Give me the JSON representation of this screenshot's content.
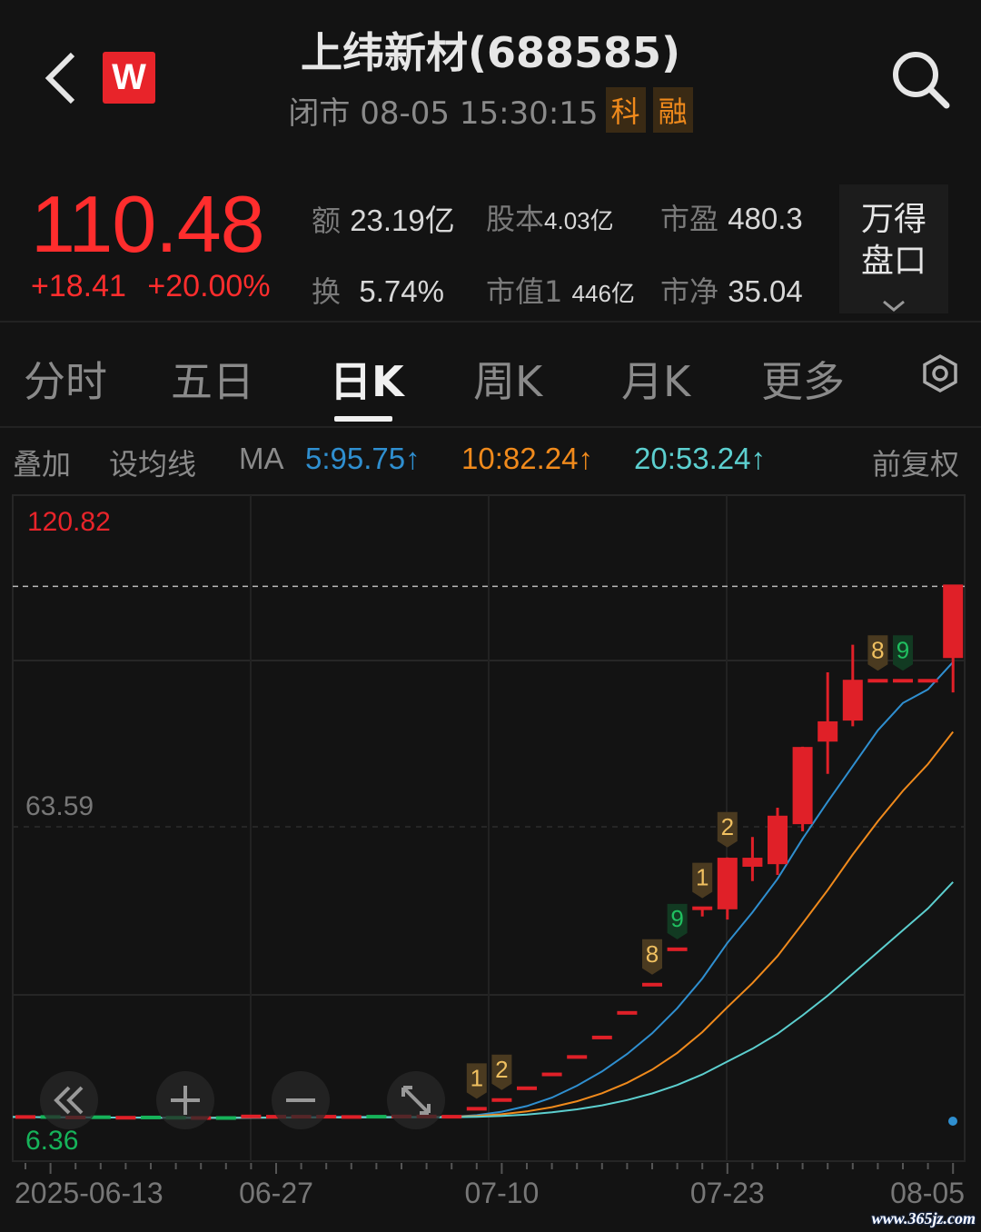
{
  "header": {
    "title": "上纬新材(688585)",
    "status": "闭市 08-05 15:30:15",
    "tags": [
      "科",
      "融"
    ],
    "logo_text": "W",
    "icons": [
      "back-chevron-icon",
      "wind-logo",
      "search-icon"
    ]
  },
  "quote": {
    "price": "110.48",
    "change": "+18.41",
    "change_pct": "+20.00%",
    "stats": [
      {
        "label": "额",
        "value": "23.19亿"
      },
      {
        "label": "股本",
        "value": "4.03亿"
      },
      {
        "label": "市盈",
        "value": "480.3"
      },
      {
        "label": "换",
        "value": "5.74%"
      },
      {
        "label": "市值1",
        "value": "446亿"
      },
      {
        "label": "市净",
        "value": "35.04"
      }
    ],
    "pankou_line1": "万得",
    "pankou_line2": "盘口"
  },
  "tabs": [
    {
      "label": "分时"
    },
    {
      "label": "五日"
    },
    {
      "label": "日K",
      "active": true
    },
    {
      "label": "周K"
    },
    {
      "label": "月K"
    },
    {
      "label": "更多"
    }
  ],
  "indicator_bar": {
    "overlay": "叠加",
    "set_ma": "设均线",
    "ma": "MA",
    "ma5": "5:95.75↑",
    "ma10": "10:82.24↑",
    "ma20": "20:53.24↑",
    "adjust": "前复权"
  },
  "colors": {
    "up": "#e02028",
    "down": "#16b35a",
    "ma5": "#2f8fd0",
    "ma10": "#f08a1c",
    "ma20": "#5ccfcf",
    "price": "#ff2d2d"
  },
  "chart_data": {
    "type": "candlestick",
    "y_labels": {
      "max": "120.82",
      "mid": "63.59",
      "min": "6.36"
    },
    "ylim": [
      6.36,
      120.82
    ],
    "x_tick_labels": [
      {
        "i": 1,
        "label": "2025-06-13"
      },
      {
        "i": 10,
        "label": "06-27"
      },
      {
        "i": 19,
        "label": "07-10"
      },
      {
        "i": 28,
        "label": "07-23"
      },
      {
        "i": 37,
        "label": "08-05"
      }
    ],
    "candles": [
      [
        7.0,
        7.0,
        7.0,
        7.0
      ],
      [
        7.0,
        6.9,
        7.0,
        6.9
      ],
      [
        6.9,
        6.9,
        6.9,
        6.9
      ],
      [
        6.95,
        6.8,
        6.95,
        6.8
      ],
      [
        6.85,
        6.85,
        6.85,
        6.85
      ],
      [
        6.9,
        6.8,
        6.9,
        6.8
      ],
      [
        6.85,
        6.75,
        6.85,
        6.75
      ],
      [
        6.8,
        6.8,
        6.8,
        6.8
      ],
      [
        6.8,
        6.75,
        6.8,
        6.75
      ],
      [
        6.85,
        7.1,
        7.1,
        6.85
      ],
      [
        7.0,
        7.05,
        7.05,
        7.0
      ],
      [
        7.0,
        7.05,
        7.05,
        7.0
      ],
      [
        7.0,
        7.05,
        7.05,
        7.0
      ],
      [
        7.0,
        7.0,
        7.0,
        7.0
      ],
      [
        7.05,
        6.95,
        7.05,
        6.95
      ],
      [
        7.0,
        7.1,
        7.1,
        7.0
      ],
      [
        7.05,
        7.1,
        7.1,
        7.05
      ],
      [
        7.0,
        7.05,
        7.05,
        7.0
      ],
      [
        8.6,
        8.6,
        8.6,
        8.6
      ],
      [
        10.3,
        10.3,
        10.3,
        10.3
      ],
      [
        12.6,
        12.6,
        12.6,
        12.6
      ],
      [
        15.3,
        15.3,
        15.3,
        15.3
      ],
      [
        18.7,
        18.7,
        18.7,
        18.7
      ],
      [
        22.5,
        22.5,
        22.5,
        22.5
      ],
      [
        27.3,
        27.3,
        27.3,
        27.3
      ],
      [
        32.8,
        32.8,
        32.8,
        32.8
      ],
      [
        39.7,
        39.7,
        39.7,
        39.7
      ],
      [
        47.7,
        47.7,
        47.7,
        46.1
      ],
      [
        47.5,
        57.2,
        57.6,
        45.5
      ],
      [
        55.8,
        57.2,
        61.6,
        53.0
      ],
      [
        56.3,
        65.4,
        67.3,
        54.2
      ],
      [
        64.1,
        78.8,
        79.2,
        62.7
      ],
      [
        80.2,
        83.8,
        93.7,
        73.9
      ],
      [
        84.3,
        91.9,
        99.1,
        83.2
      ],
      [
        92.07,
        92.07,
        92.07,
        92.07
      ],
      [
        92.07,
        92.07,
        92.07,
        92.07
      ],
      [
        92.07,
        92.07,
        92.07,
        92.07
      ],
      [
        96.5,
        110.48,
        110.48,
        89.8
      ]
    ],
    "candle_fields": [
      "open",
      "close",
      "high",
      "low"
    ],
    "ma_periods": [
      5,
      10,
      20
    ],
    "signals": [
      {
        "i": 18,
        "label": "1"
      },
      {
        "i": 19,
        "label": "2"
      },
      {
        "i": 25,
        "label": "8"
      },
      {
        "i": 26,
        "label": "9",
        "green": true
      },
      {
        "i": 27,
        "label": "1"
      },
      {
        "i": 28,
        "label": "2"
      },
      {
        "i": 34,
        "label": "8"
      },
      {
        "i": 35,
        "label": "9",
        "green": true
      }
    ]
  },
  "chart_controls": [
    "scroll-left",
    "zoom-in",
    "zoom-out",
    "fullscreen"
  ],
  "watermark": "www.365jz.com"
}
